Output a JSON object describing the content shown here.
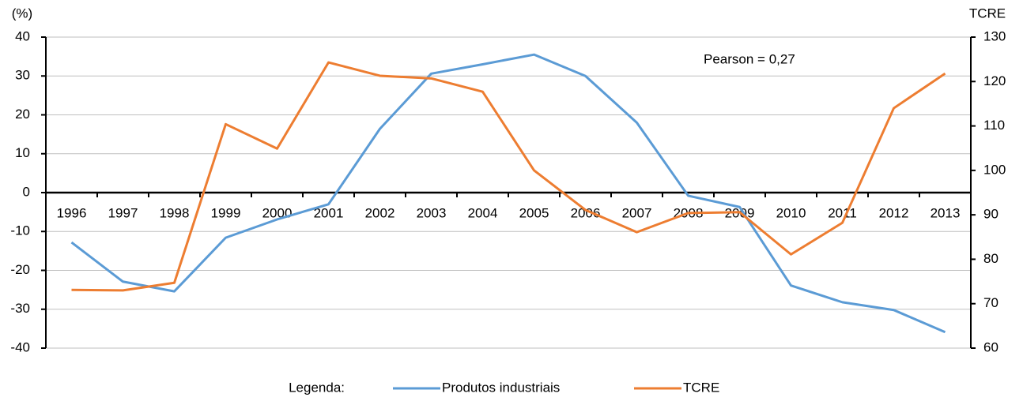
{
  "chart_data": {
    "type": "line",
    "y_label": "(%)",
    "y2_label": "TCRE",
    "annotation": "Pearson = 0,27",
    "legend_title": "Legenda:",
    "categories": [
      "1996",
      "1997",
      "1998",
      "1999",
      "2000",
      "2001",
      "2002",
      "2003",
      "2004",
      "2005",
      "2006",
      "2007",
      "2008",
      "2009",
      "2010",
      "2011",
      "2012",
      "2013"
    ],
    "series": [
      {
        "name": "Produtos industriais",
        "color": "#5b9bd5",
        "axis": "y",
        "values": [
          -12.8,
          -22.9,
          -25.4,
          -11.6,
          -6.9,
          -3.0,
          16.4,
          30.6,
          33.0,
          35.5,
          30.0,
          18.0,
          -0.8,
          -3.7,
          -23.9,
          -28.2,
          -30.2,
          -35.9
        ]
      },
      {
        "name": "TCRE",
        "color": "#ed7d31",
        "axis": "y2",
        "values": [
          73.1,
          73.0,
          74.7,
          110.4,
          104.9,
          124.3,
          121.3,
          120.7,
          117.7,
          100.0,
          91.1,
          86.1,
          90.4,
          90.6,
          81.1,
          88.2,
          114.0,
          121.8
        ]
      }
    ],
    "ylim": [
      -40,
      40
    ],
    "yticks": [
      -40,
      -30,
      -20,
      -10,
      0,
      10,
      20,
      30,
      40
    ],
    "y2lim": [
      60,
      130
    ],
    "y2ticks": [
      60,
      70,
      80,
      90,
      100,
      110,
      120,
      130
    ],
    "grid": true
  }
}
